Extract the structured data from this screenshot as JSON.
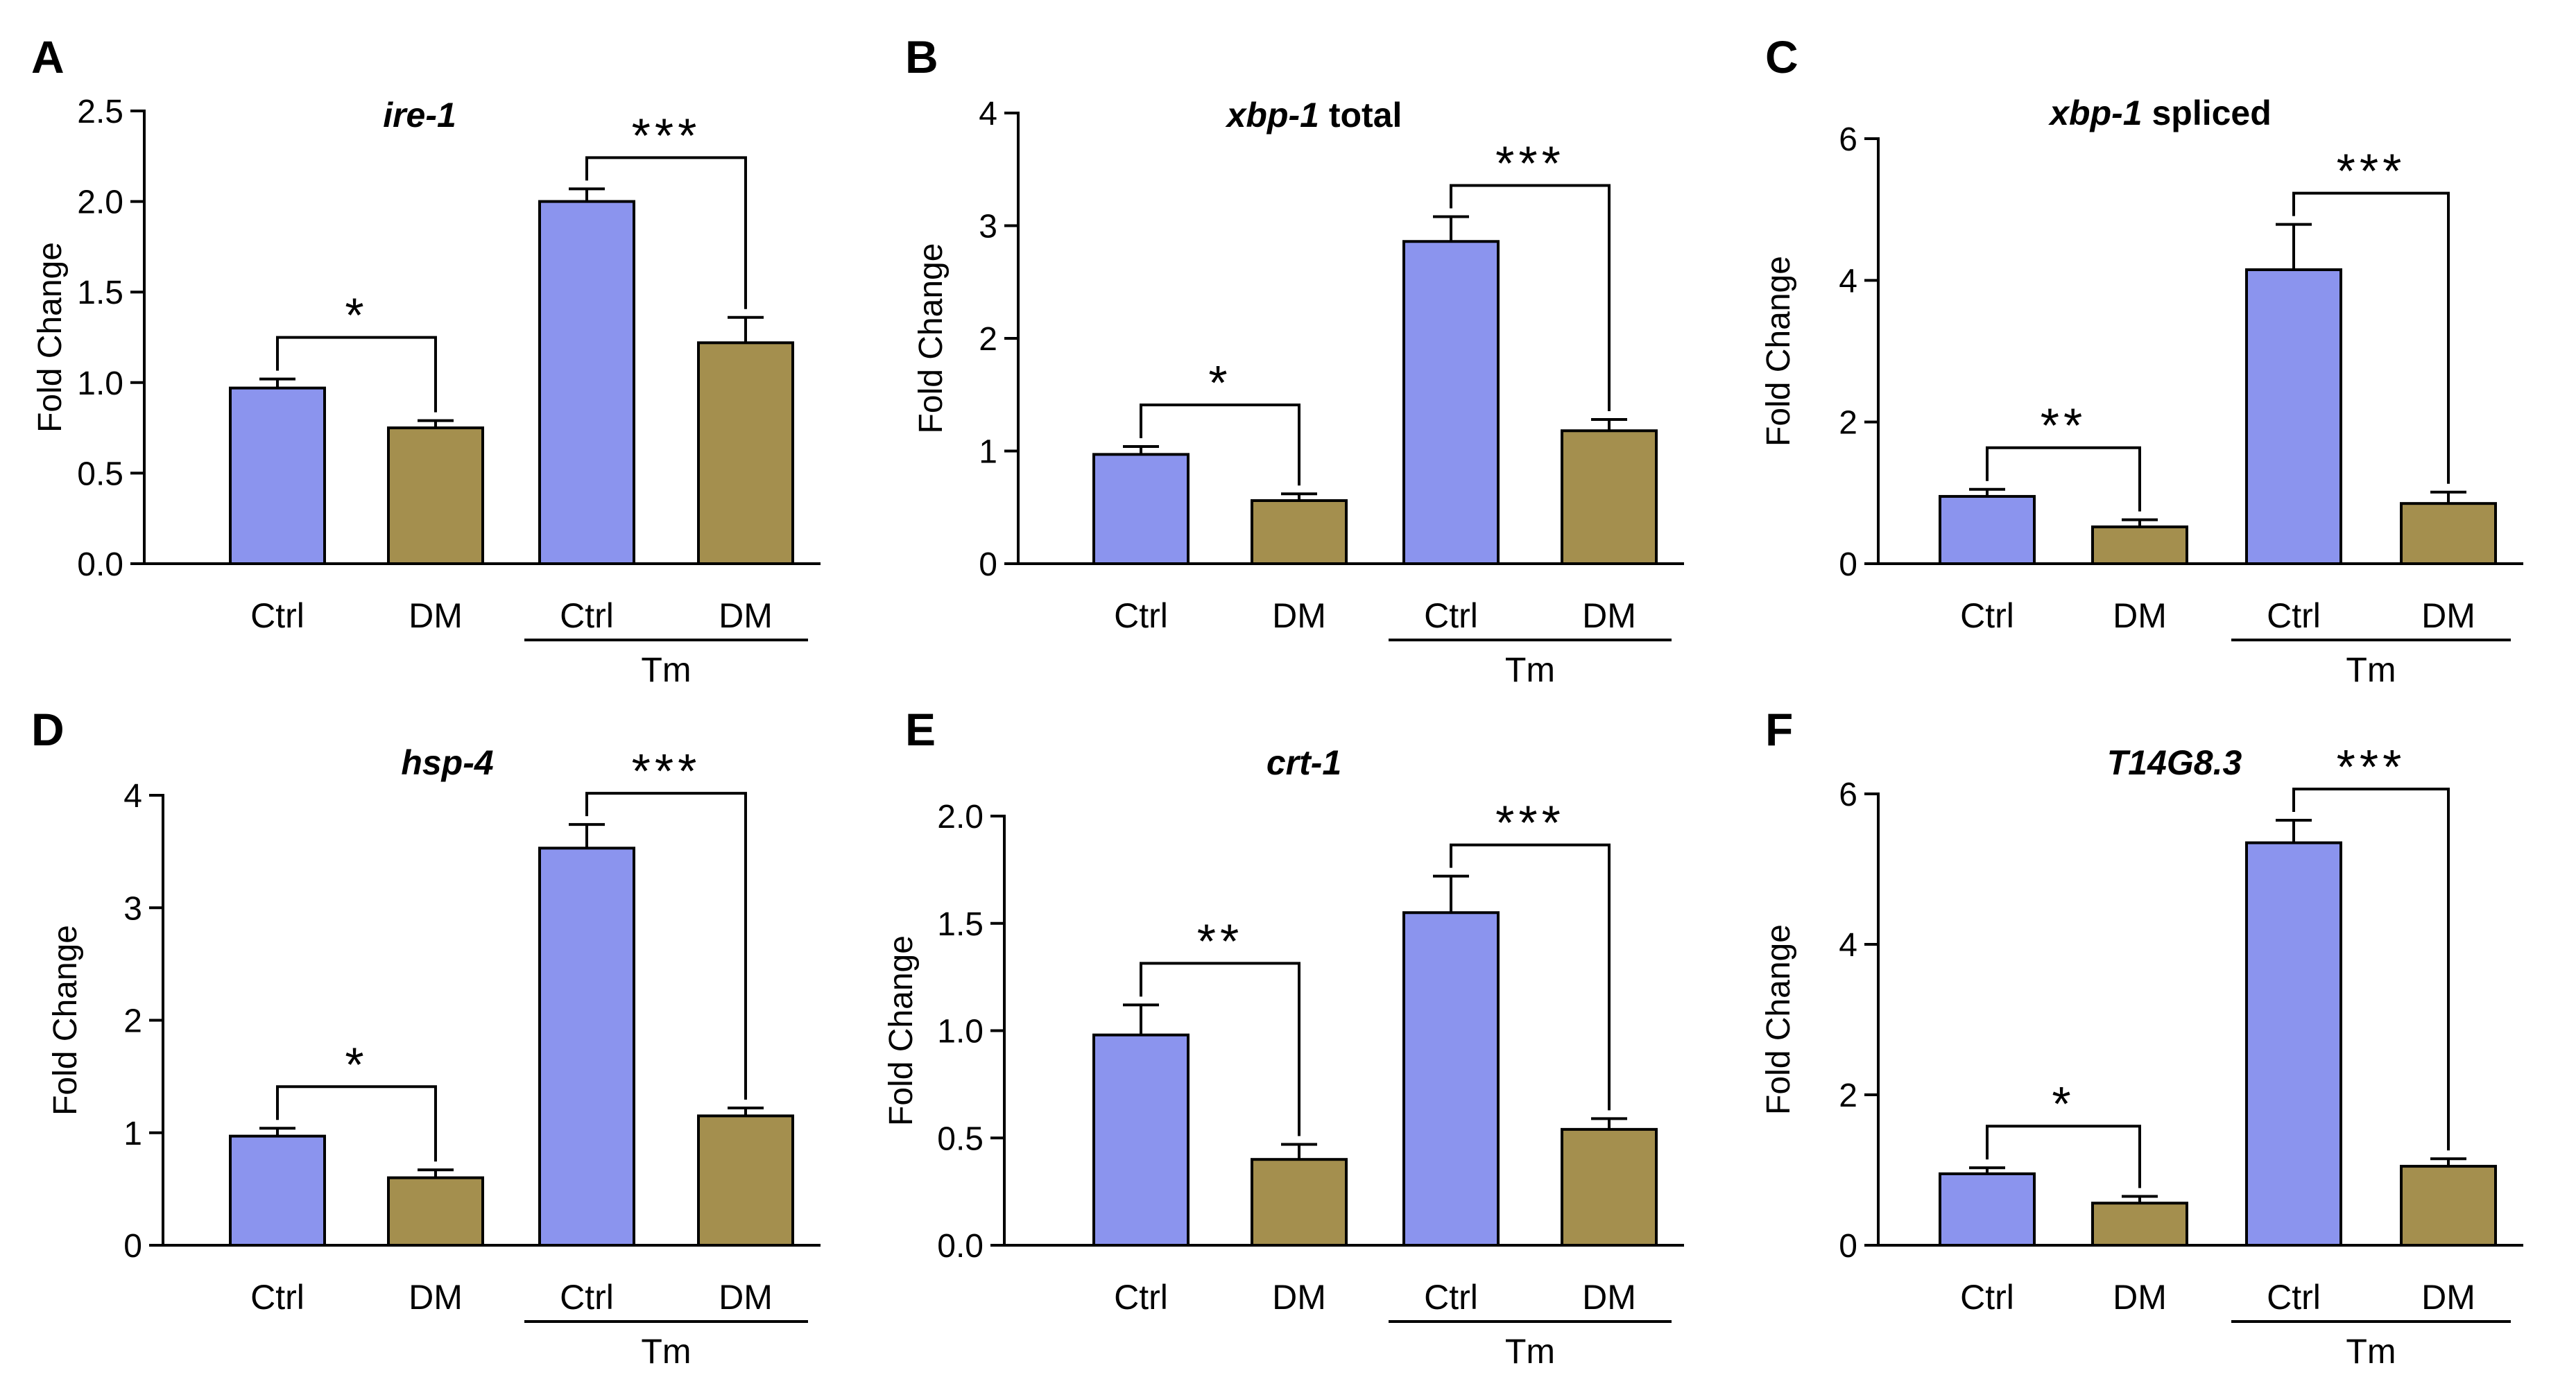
{
  "figure": {
    "colors": {
      "ctrl": "#8B94EE",
      "dm": "#A48F4E",
      "axis": "#000000"
    },
    "panels": [
      {
        "letter": "A",
        "gene": "ire-1",
        "suffix": ""
      },
      {
        "letter": "B",
        "gene": "xbp-1",
        "suffix": " total"
      },
      {
        "letter": "C",
        "gene": "xbp-1",
        "suffix": " spliced"
      },
      {
        "letter": "D",
        "gene": "hsp-4",
        "suffix": ""
      },
      {
        "letter": "E",
        "gene": "crt-1",
        "suffix": ""
      },
      {
        "letter": "F",
        "gene": "T14G8.3",
        "suffix": ""
      }
    ]
  },
  "chart_data": [
    {
      "type": "bar",
      "panel": "A",
      "title": "ire-1",
      "ylabel": "Fold Change",
      "categories": [
        "Ctrl",
        "DM",
        "Ctrl",
        "DM"
      ],
      "group_label": "Tm",
      "ylim": [
        0,
        2.5
      ],
      "yticks": [
        "0.0",
        "0.5",
        "1.0",
        "1.5",
        "2.0",
        "2.5"
      ],
      "values": [
        0.97,
        0.75,
        2.0,
        1.22
      ],
      "errors": [
        0.05,
        0.04,
        0.07,
        0.14
      ],
      "significance": [
        {
          "from": 0,
          "to": 1,
          "label": "*"
        },
        {
          "from": 2,
          "to": 3,
          "label": "***"
        }
      ]
    },
    {
      "type": "bar",
      "panel": "B",
      "title": "xbp-1 total",
      "ylabel": "Fold Change",
      "categories": [
        "Ctrl",
        "DM",
        "Ctrl",
        "DM"
      ],
      "group_label": "Tm",
      "ylim": [
        0,
        4
      ],
      "yticks": [
        "0",
        "1",
        "2",
        "3",
        "4"
      ],
      "values": [
        0.97,
        0.56,
        2.86,
        1.18
      ],
      "errors": [
        0.07,
        0.06,
        0.22,
        0.1
      ],
      "significance": [
        {
          "from": 0,
          "to": 1,
          "label": "*"
        },
        {
          "from": 2,
          "to": 3,
          "label": "***"
        }
      ]
    },
    {
      "type": "bar",
      "panel": "C",
      "title": "xbp-1 spliced",
      "ylabel": "Fold Change",
      "categories": [
        "Ctrl",
        "DM",
        "Ctrl",
        "DM"
      ],
      "group_label": "Tm",
      "ylim": [
        0,
        6
      ],
      "yticks": [
        "0",
        "2",
        "4",
        "6"
      ],
      "values": [
        0.95,
        0.52,
        4.15,
        0.85
      ],
      "errors": [
        0.1,
        0.1,
        0.64,
        0.16
      ],
      "significance": [
        {
          "from": 0,
          "to": 1,
          "label": "**"
        },
        {
          "from": 2,
          "to": 3,
          "label": "***"
        }
      ]
    },
    {
      "type": "bar",
      "panel": "D",
      "title": "hsp-4",
      "ylabel": "Fold Change",
      "categories": [
        "Ctrl",
        "DM",
        "Ctrl",
        "DM"
      ],
      "group_label": "Tm",
      "ylim": [
        0,
        4
      ],
      "yticks": [
        "0",
        "1",
        "2",
        "3",
        "4"
      ],
      "values": [
        0.97,
        0.6,
        3.53,
        1.15
      ],
      "errors": [
        0.07,
        0.07,
        0.21,
        0.07
      ],
      "significance": [
        {
          "from": 0,
          "to": 1,
          "label": "*"
        },
        {
          "from": 2,
          "to": 3,
          "label": "***"
        }
      ]
    },
    {
      "type": "bar",
      "panel": "E",
      "title": "crt-1",
      "ylabel": "Fold Change",
      "categories": [
        "Ctrl",
        "DM",
        "Ctrl",
        "DM"
      ],
      "group_label": "Tm",
      "ylim": [
        0,
        2.0
      ],
      "yticks": [
        "0.0",
        "0.5",
        "1.0",
        "1.5",
        "2.0"
      ],
      "values": [
        0.98,
        0.4,
        1.55,
        0.54
      ],
      "errors": [
        0.14,
        0.07,
        0.17,
        0.05
      ],
      "significance": [
        {
          "from": 0,
          "to": 1,
          "label": "**"
        },
        {
          "from": 2,
          "to": 3,
          "label": "***"
        }
      ]
    },
    {
      "type": "bar",
      "panel": "F",
      "title": "T14G8.3",
      "ylabel": "Fold Change",
      "categories": [
        "Ctrl",
        "DM",
        "Ctrl",
        "DM"
      ],
      "group_label": "Tm",
      "ylim": [
        0,
        6
      ],
      "yticks": [
        "0",
        "2",
        "4",
        "6"
      ],
      "values": [
        0.95,
        0.56,
        5.35,
        1.05
      ],
      "errors": [
        0.08,
        0.09,
        0.3,
        0.1
      ],
      "significance": [
        {
          "from": 0,
          "to": 1,
          "label": "*"
        },
        {
          "from": 2,
          "to": 3,
          "label": "***"
        }
      ]
    }
  ]
}
